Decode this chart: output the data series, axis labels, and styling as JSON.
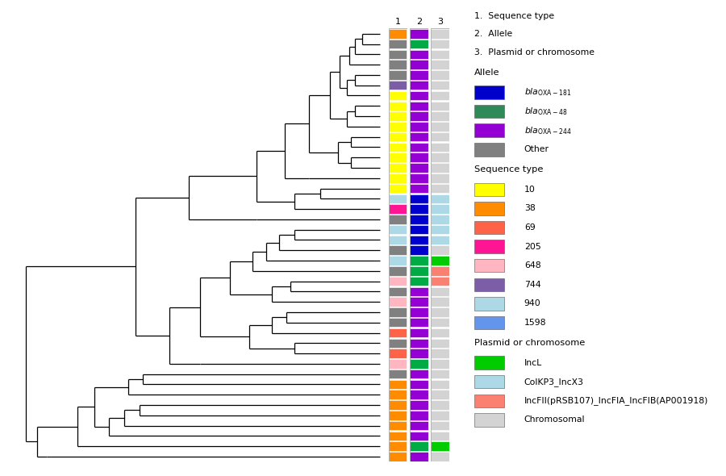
{
  "num_taxa": 42,
  "col1_colors": [
    "#FF8C00",
    "#808080",
    "#808080",
    "#808080",
    "#808080",
    "#7B5EA7",
    "#FFFF00",
    "#FFFF00",
    "#FFFF00",
    "#FFFF00",
    "#FFFF00",
    "#FFFF00",
    "#FFFF00",
    "#FFFF00",
    "#FFFF00",
    "#FFFF00",
    "#ADD8E6",
    "#FF1493",
    "#808080",
    "#ADD8E6",
    "#ADD8E6",
    "#808080",
    "#ADD8E6",
    "#808080",
    "#FFB6C1",
    "#808080",
    "#FFB6C1",
    "#808080",
    "#808080",
    "#FF6347",
    "#808080",
    "#FF6347",
    "#FFB6C1",
    "#808080",
    "#FF8C00",
    "#FF8C00",
    "#FF8C00",
    "#FF8C00",
    "#FF8C00",
    "#FF8C00",
    "#FF8C00",
    "#FF8C00"
  ],
  "col2_colors": [
    "#9400D3",
    "#00AA44",
    "#9400D3",
    "#9400D3",
    "#9400D3",
    "#9400D3",
    "#9400D3",
    "#9400D3",
    "#9400D3",
    "#9400D3",
    "#9400D3",
    "#9400D3",
    "#9400D3",
    "#9400D3",
    "#9400D3",
    "#9400D3",
    "#0000CD",
    "#0000CD",
    "#0000CD",
    "#0000CD",
    "#0000CD",
    "#0000CD",
    "#00AA44",
    "#00AA44",
    "#00AA44",
    "#9400D3",
    "#9400D3",
    "#9400D3",
    "#9400D3",
    "#9400D3",
    "#9400D3",
    "#9400D3",
    "#00AA44",
    "#9400D3",
    "#9400D3",
    "#9400D3",
    "#9400D3",
    "#9400D3",
    "#9400D3",
    "#9400D3",
    "#00AA44",
    "#9400D3"
  ],
  "col3_colors": [
    "#D3D3D3",
    "#D3D3D3",
    "#D3D3D3",
    "#D3D3D3",
    "#D3D3D3",
    "#D3D3D3",
    "#D3D3D3",
    "#D3D3D3",
    "#D3D3D3",
    "#D3D3D3",
    "#D3D3D3",
    "#D3D3D3",
    "#D3D3D3",
    "#D3D3D3",
    "#D3D3D3",
    "#D3D3D3",
    "#ADD8E6",
    "#ADD8E6",
    "#ADD8E6",
    "#ADD8E6",
    "#ADD8E6",
    "#D3D3D3",
    "#00CC00",
    "#FA8072",
    "#FA8072",
    "#D3D3D3",
    "#D3D3D3",
    "#D3D3D3",
    "#D3D3D3",
    "#D3D3D3",
    "#D3D3D3",
    "#D3D3D3",
    "#D3D3D3",
    "#D3D3D3",
    "#D3D3D3",
    "#D3D3D3",
    "#D3D3D3",
    "#D3D3D3",
    "#D3D3D3",
    "#D3D3D3",
    "#00CC00",
    "#D3D3D3"
  ],
  "col_headers": [
    "1",
    "2",
    "3"
  ],
  "subheaders": [
    "1.  Sequence type",
    "2.  Allele",
    "3.  Plasmid or chromosome"
  ],
  "allele_header": "Allele",
  "seqtype_header": "Sequence type",
  "plasmid_header": "Plasmid or chromosome",
  "allele_legend": [
    {
      "color": "#0000CD",
      "label_it": "bla",
      "label_sub": "OXA-181"
    },
    {
      "color": "#2E8B57",
      "label_it": "bla",
      "label_sub": "OXA-48"
    },
    {
      "color": "#9400D3",
      "label_it": "bla",
      "label_sub": "OXA-244"
    },
    {
      "color": "#808080",
      "label_plain": "Other"
    }
  ],
  "seqtype_legend": [
    {
      "color": "#FFFF00",
      "label": "10"
    },
    {
      "color": "#FF8C00",
      "label": "38"
    },
    {
      "color": "#FF6347",
      "label": "69"
    },
    {
      "color": "#FF1493",
      "label": "205"
    },
    {
      "color": "#FFB6C1",
      "label": "648"
    },
    {
      "color": "#7B5EA7",
      "label": "744"
    },
    {
      "color": "#ADD8E6",
      "label": "940"
    },
    {
      "color": "#6495ED",
      "label": "1598"
    }
  ],
  "plasmid_legend": [
    {
      "color": "#00CC00",
      "label": "IncL"
    },
    {
      "color": "#ADD8E6",
      "label": "ColKP3_IncX3"
    },
    {
      "color": "#FA8072",
      "label": "IncFII(pRSB107)_IncFIA_IncFIB(AP001918)"
    },
    {
      "color": "#D3D3D3",
      "label": "Chromosomal"
    }
  ],
  "background_color": "#ffffff"
}
